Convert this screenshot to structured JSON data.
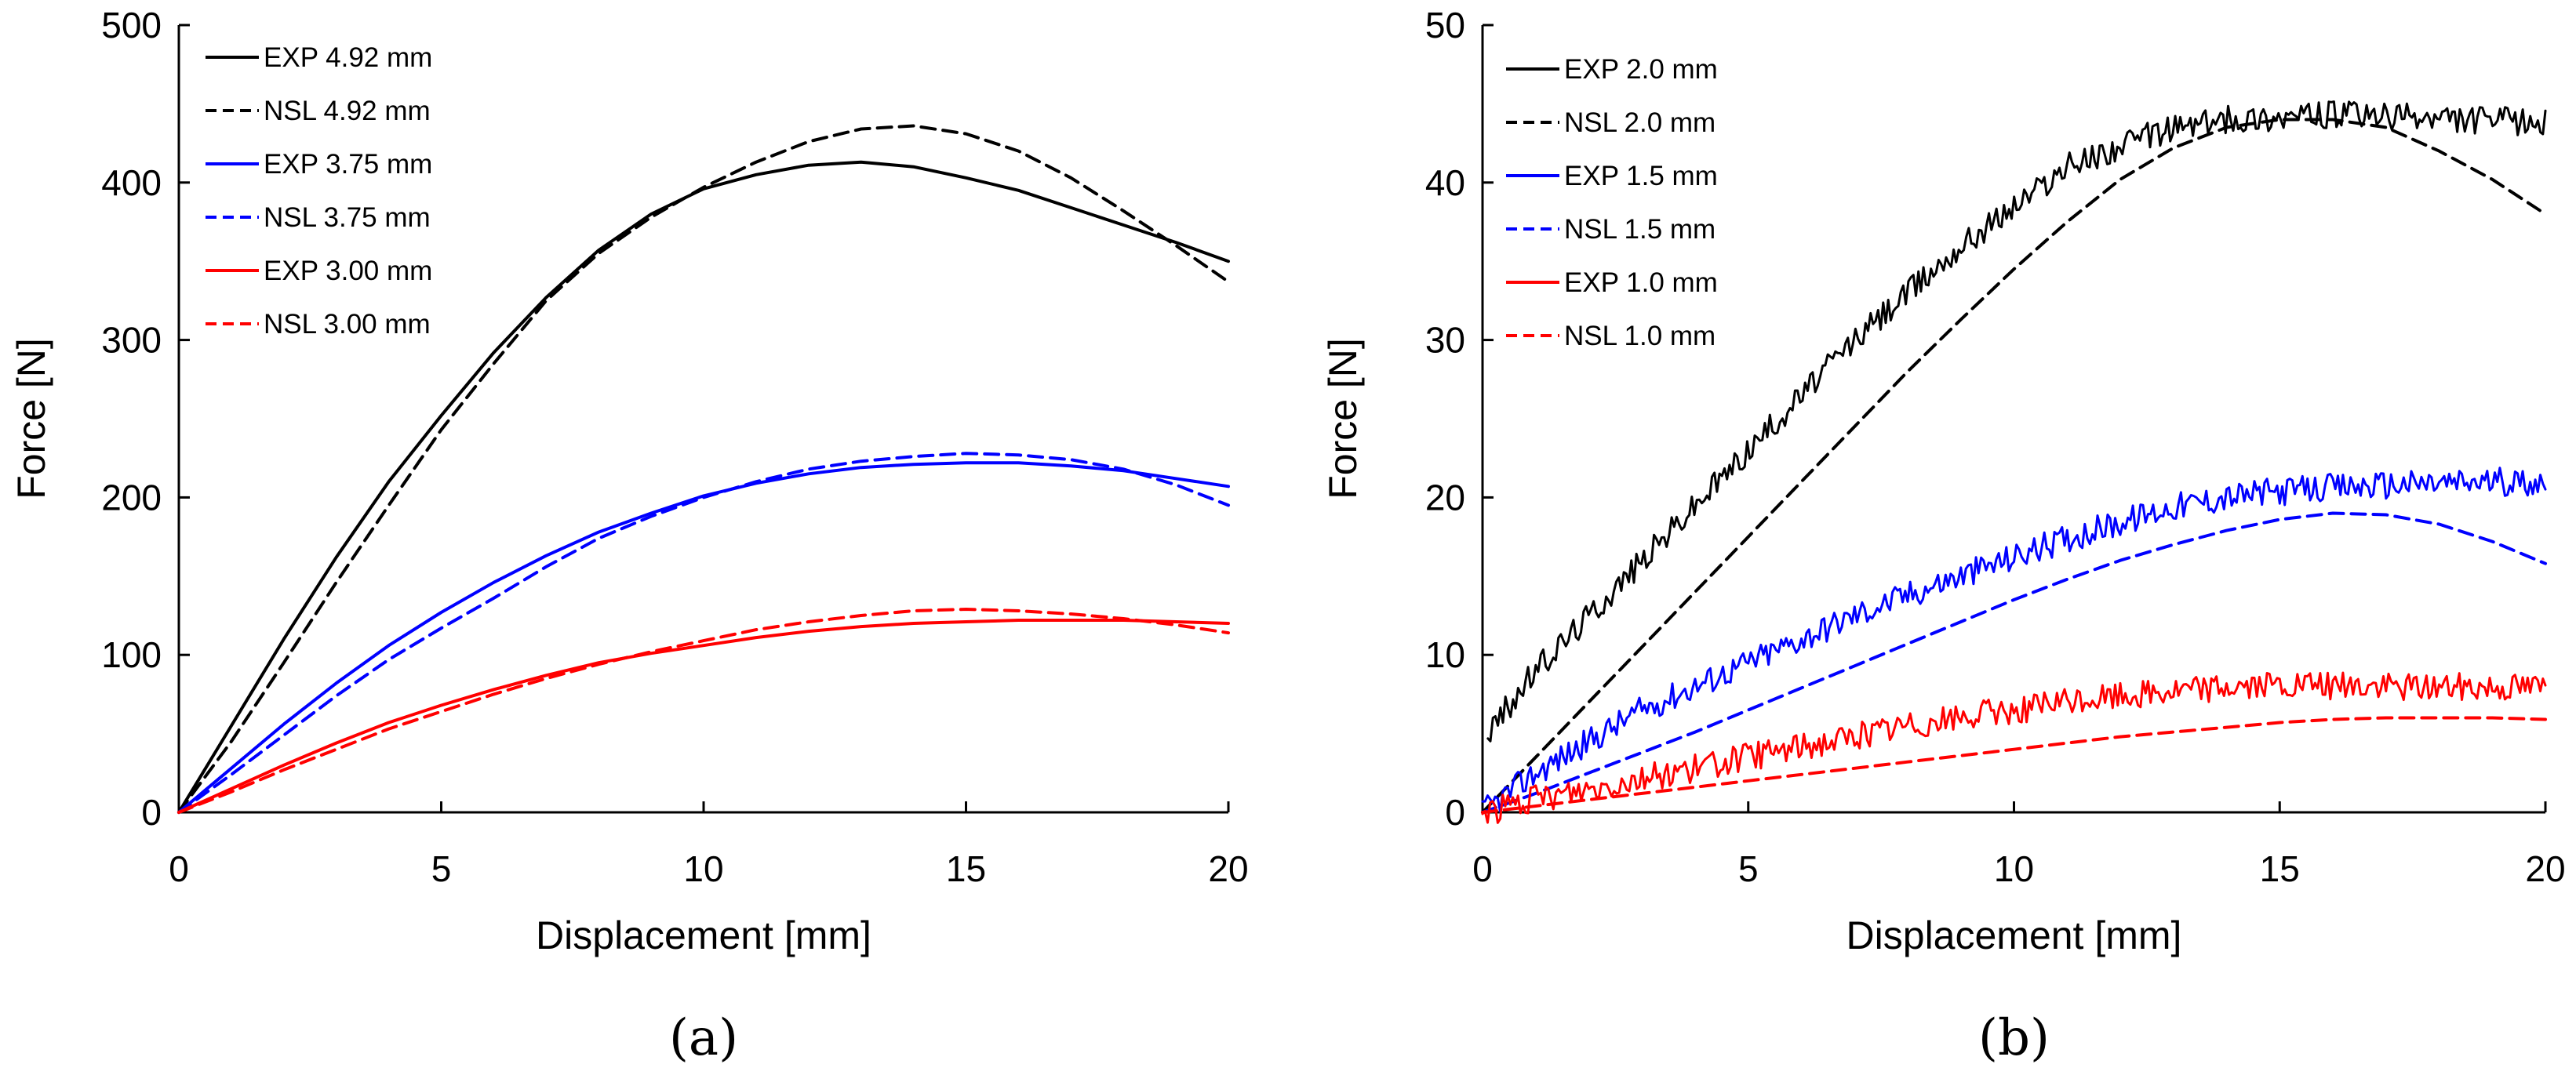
{
  "chart_data": [
    {
      "type": "line",
      "panel_label": "(a)",
      "xlabel": "Displacement [mm]",
      "ylabel": "Force [N]",
      "xlim": [
        0,
        20
      ],
      "ylim": [
        0,
        500
      ],
      "xticks": [
        0,
        5,
        10,
        15,
        20
      ],
      "yticks": [
        0,
        100,
        200,
        300,
        400,
        500
      ],
      "grid": false,
      "legend_position": "top-left",
      "series": [
        {
          "name": "EXP 4.92 mm",
          "color": "#000000",
          "dash": "solid",
          "x": [
            0,
            1,
            2,
            3,
            4,
            5,
            6,
            7,
            8,
            9,
            10,
            11,
            12,
            13,
            14,
            15,
            16,
            17,
            18,
            19,
            20
          ],
          "y": [
            0,
            55,
            110,
            162,
            210,
            252,
            292,
            327,
            357,
            380,
            396,
            405,
            411,
            413,
            410,
            403,
            395,
            384,
            373,
            362,
            350
          ]
        },
        {
          "name": "NSL 4.92 mm",
          "color": "#000000",
          "dash": "dashed",
          "x": [
            0,
            1,
            2,
            3,
            4,
            5,
            6,
            7,
            8,
            9,
            10,
            11,
            12,
            13,
            14,
            15,
            16,
            17,
            18,
            19,
            20
          ],
          "y": [
            0,
            45,
            95,
            146,
            195,
            243,
            285,
            325,
            355,
            378,
            397,
            413,
            426,
            434,
            436,
            431,
            420,
            403,
            382,
            360,
            337
          ]
        },
        {
          "name": "EXP 3.75 mm",
          "color": "#0000ff",
          "dash": "solid",
          "x": [
            0,
            1,
            2,
            3,
            4,
            5,
            6,
            7,
            8,
            9,
            10,
            11,
            12,
            13,
            14,
            15,
            16,
            17,
            18,
            19,
            20
          ],
          "y": [
            0,
            28,
            56,
            82,
            106,
            127,
            146,
            163,
            178,
            190,
            201,
            209,
            215,
            219,
            221,
            222,
            222,
            220,
            217,
            212,
            207
          ]
        },
        {
          "name": "NSL 3.75 mm",
          "color": "#0000ff",
          "dash": "dashed",
          "x": [
            0,
            1,
            2,
            3,
            4,
            5,
            6,
            7,
            8,
            9,
            10,
            11,
            12,
            13,
            14,
            15,
            16,
            17,
            18,
            19,
            20
          ],
          "y": [
            0,
            24,
            49,
            74,
            97,
            117,
            136,
            156,
            174,
            188,
            200,
            210,
            218,
            223,
            226,
            228,
            227,
            224,
            218,
            208,
            195
          ]
        },
        {
          "name": "EXP 3.00 mm",
          "color": "#ff0000",
          "dash": "solid",
          "x": [
            0,
            1,
            2,
            3,
            4,
            5,
            6,
            7,
            8,
            9,
            10,
            11,
            12,
            13,
            14,
            15,
            16,
            17,
            18,
            19,
            20
          ],
          "y": [
            0,
            15,
            30,
            44,
            57,
            68,
            78,
            87,
            95,
            101,
            106,
            111,
            115,
            118,
            120,
            121,
            122,
            122,
            122,
            121,
            120
          ]
        },
        {
          "name": "NSL 3.00 mm",
          "color": "#ff0000",
          "dash": "dashed",
          "x": [
            0,
            1,
            2,
            3,
            4,
            5,
            6,
            7,
            8,
            9,
            10,
            11,
            12,
            13,
            14,
            15,
            16,
            17,
            18,
            19,
            20
          ],
          "y": [
            0,
            13,
            27,
            40,
            53,
            64,
            75,
            85,
            94,
            102,
            109,
            116,
            121,
            125,
            128,
            129,
            128,
            126,
            123,
            119,
            114
          ]
        }
      ]
    },
    {
      "type": "line",
      "panel_label": "(b)",
      "xlabel": "Displacement [mm]",
      "ylabel": "Force [N]",
      "xlim": [
        0,
        20
      ],
      "ylim": [
        0,
        50
      ],
      "xticks": [
        0,
        5,
        10,
        15,
        20
      ],
      "yticks": [
        0,
        10,
        20,
        30,
        40,
        50
      ],
      "grid": false,
      "legend_position": "top-left",
      "series": [
        {
          "name": "EXP 2.0 mm",
          "color": "#000000",
          "dash": "solid",
          "noisy": true,
          "x": [
            0.1,
            1,
            2,
            3,
            4,
            5,
            6,
            7,
            8,
            9,
            10,
            11,
            12,
            13,
            14,
            15,
            16,
            17,
            18,
            19,
            20
          ],
          "y": [
            5,
            9,
            12.5,
            16,
            19.5,
            23,
            26.5,
            30,
            33,
            36,
            38.5,
            41,
            42.3,
            43.5,
            44,
            44.2,
            44.3,
            44.2,
            44,
            44,
            43.8
          ]
        },
        {
          "name": "NSL 2.0 mm",
          "color": "#000000",
          "dash": "dashed",
          "x": [
            0,
            1,
            2,
            3,
            4,
            5,
            6,
            7,
            8,
            9,
            10,
            11,
            12,
            13,
            14,
            15,
            16,
            17,
            18,
            19,
            20
          ],
          "y": [
            0,
            3.5,
            7,
            10.5,
            14,
            17.5,
            21,
            24.5,
            28,
            31.3,
            34.5,
            37.5,
            40.2,
            42.2,
            43.5,
            44,
            44,
            43.5,
            42,
            40.2,
            38
          ]
        },
        {
          "name": "EXP 1.5 mm",
          "color": "#0000ff",
          "dash": "solid",
          "noisy": true,
          "x": [
            0,
            1,
            2,
            3,
            4,
            5,
            6,
            7,
            8,
            9,
            10,
            11,
            12,
            13,
            14,
            15,
            16,
            17,
            18,
            19,
            20
          ],
          "y": [
            0,
            2.5,
            4.5,
            6.5,
            8,
            9.5,
            11,
            12.5,
            13.8,
            15,
            16.2,
            17.4,
            18.4,
            19.4,
            20,
            20.4,
            20.6,
            20.8,
            20.9,
            21,
            21
          ]
        },
        {
          "name": "NSL 1.5 mm",
          "color": "#0000ff",
          "dash": "dashed",
          "x": [
            0,
            1,
            2,
            3,
            4,
            5,
            6,
            7,
            8,
            9,
            10,
            11,
            12,
            13,
            14,
            15,
            16,
            17,
            18,
            19,
            20
          ],
          "y": [
            0,
            1.2,
            2.5,
            3.8,
            5.1,
            6.5,
            7.9,
            9.3,
            10.7,
            12.1,
            13.5,
            14.8,
            16,
            17,
            17.9,
            18.6,
            19,
            18.9,
            18.3,
            17.2,
            15.8
          ]
        },
        {
          "name": "EXP 1.0 mm",
          "color": "#ff0000",
          "dash": "solid",
          "noisy": true,
          "x": [
            0,
            1,
            2,
            3,
            4,
            5,
            6,
            7,
            8,
            9,
            10,
            11,
            12,
            13,
            14,
            15,
            16,
            17,
            18,
            19,
            20
          ],
          "y": [
            0,
            0.8,
            1.5,
            2.2,
            2.8,
            3.5,
            4.2,
            4.8,
            5.5,
            6,
            6.5,
            7,
            7.4,
            7.7,
            8,
            8,
            8,
            8,
            8,
            8,
            8
          ]
        },
        {
          "name": "NSL 1.0 mm",
          "color": "#ff0000",
          "dash": "dashed",
          "x": [
            0,
            1,
            2,
            3,
            4,
            5,
            6,
            7,
            8,
            9,
            10,
            11,
            12,
            13,
            14,
            15,
            16,
            17,
            18,
            19,
            20
          ],
          "y": [
            0,
            0.4,
            0.8,
            1.2,
            1.6,
            2,
            2.4,
            2.8,
            3.2,
            3.6,
            4,
            4.4,
            4.8,
            5.1,
            5.4,
            5.7,
            5.9,
            6,
            6,
            6,
            5.9
          ]
        }
      ]
    }
  ]
}
